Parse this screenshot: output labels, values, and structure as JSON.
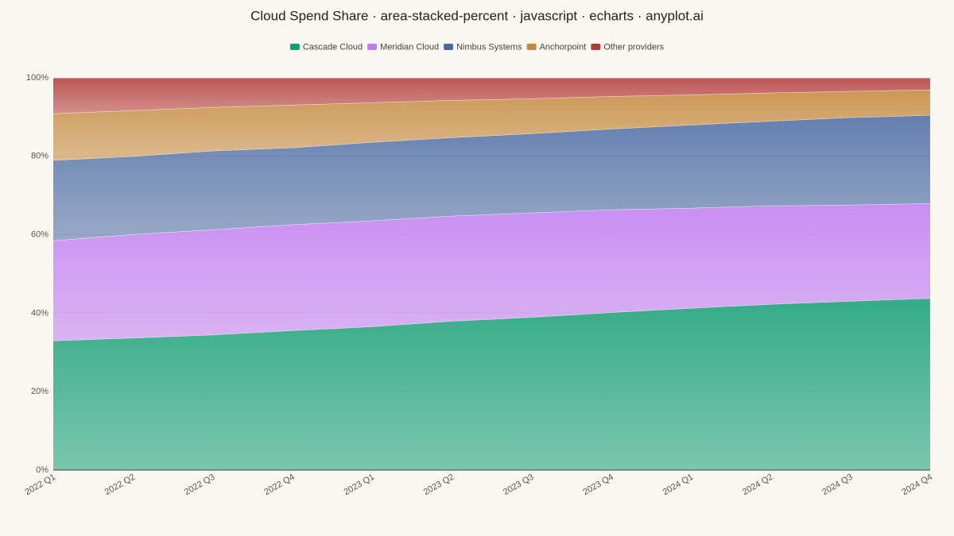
{
  "chart_data": {
    "type": "area-stacked-percent",
    "title": "Cloud Spend Share · area-stacked-percent · javascript · echarts · anyplot.ai",
    "categories": [
      "2022 Q1",
      "2022 Q2",
      "2022 Q3",
      "2022 Q4",
      "2023 Q1",
      "2023 Q2",
      "2023 Q3",
      "2023 Q4",
      "2024 Q1",
      "2024 Q2",
      "2024 Q3",
      "2024 Q4"
    ],
    "series": [
      {
        "name": "Cascade Cloud",
        "color": "#129e76",
        "values": [
          33,
          33.7,
          34.5,
          35.6,
          36.6,
          38,
          39,
          40.2,
          41.3,
          42.3,
          43.1,
          43.8
        ]
      },
      {
        "name": "Meridian Cloud",
        "color": "#c07cf4",
        "values": [
          25.5,
          26.4,
          26.8,
          27,
          27,
          26.8,
          26.6,
          26.2,
          25.5,
          25.1,
          24.5,
          24.2
        ]
      },
      {
        "name": "Nimbus Systems",
        "color": "#4a6aa5",
        "values": [
          20.5,
          19.9,
          20.1,
          19.6,
          20,
          20,
          20.2,
          20.6,
          21.2,
          21.6,
          22.3,
          22.5
        ]
      },
      {
        "name": "Anchorpoint",
        "color": "#c4873b",
        "values": [
          11.9,
          11.7,
          11.1,
          10.9,
          10.1,
          9.5,
          8.9,
          8.3,
          7.7,
          7.2,
          6.7,
          6.5
        ]
      },
      {
        "name": "Other providers",
        "color": "#b23a3a",
        "values": [
          9.1,
          8.3,
          7.5,
          6.9,
          6.3,
          5.7,
          5.3,
          4.7,
          4.3,
          3.8,
          3.4,
          3
        ]
      }
    ],
    "ylim": [
      0,
      100
    ],
    "yticks": [
      {
        "value": 0,
        "label": "0%"
      },
      {
        "value": 20,
        "label": "20%"
      },
      {
        "value": 40,
        "label": "40%"
      },
      {
        "value": 60,
        "label": "60%"
      },
      {
        "value": 80,
        "label": "80%"
      },
      {
        "value": 100,
        "label": "100%"
      }
    ],
    "grid": true,
    "legend": "top"
  }
}
